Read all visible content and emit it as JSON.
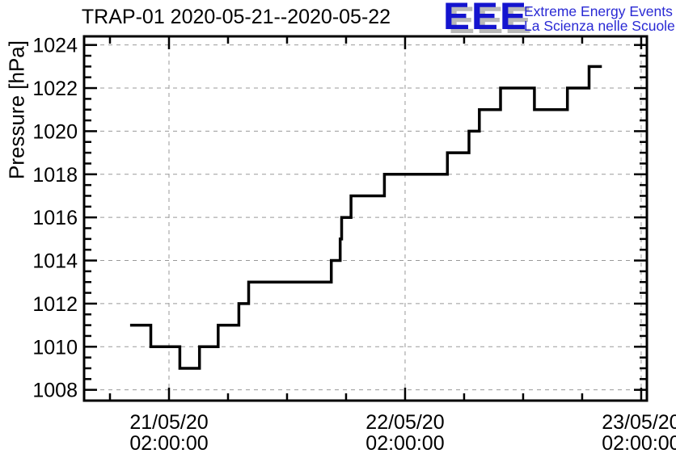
{
  "header": {
    "title": "TRAP-01 2020-05-21--2020-05-22"
  },
  "logo": {
    "acronym": "EEE",
    "line1": "Extreme Energy Events",
    "line2": "La Scienza nelle Scuole",
    "blue": "#1414cf",
    "text_blue": "#2929d4",
    "shadow_gray": "#b9b9b9"
  },
  "chart_data": {
    "type": "line",
    "step": true,
    "title": "TRAP-01 2020-05-21--2020-05-22",
    "xlabel": "",
    "ylabel": "Pressure [hPa]",
    "grid": true,
    "legend": "none",
    "line_color": "#000000",
    "grid_color": "#999999",
    "ylim": [
      1007.5,
      1024.4
    ],
    "y_ticks": [
      1008,
      1010,
      1012,
      1014,
      1016,
      1018,
      1020,
      1022,
      1024
    ],
    "y_minor_step": 0.5,
    "xlim_hours": [
      -8.63,
      48.58
    ],
    "x_minor_step_hours": 6,
    "x_ticks": [
      {
        "hour": 0,
        "date": "21/05/20",
        "time": "02:00:00"
      },
      {
        "hour": 24,
        "date": "22/05/20",
        "time": "02:00:00"
      },
      {
        "hour": 48,
        "date": "23/05/20",
        "time": "02:00:00"
      }
    ],
    "series": [
      {
        "name": "pressure_hPa",
        "points_hour_hpa": [
          [
            -3.95,
            1011
          ],
          [
            -1.85,
            1010
          ],
          [
            1.1,
            1009
          ],
          [
            3.1,
            1010
          ],
          [
            5.0,
            1011
          ],
          [
            7.1,
            1012
          ],
          [
            8.1,
            1013
          ],
          [
            16.5,
            1014
          ],
          [
            17.4,
            1015
          ],
          [
            17.55,
            1016
          ],
          [
            18.5,
            1017
          ],
          [
            21.9,
            1018
          ],
          [
            28.3,
            1019
          ],
          [
            30.5,
            1020
          ],
          [
            31.55,
            1021
          ],
          [
            33.7,
            1022
          ],
          [
            37.15,
            1021
          ],
          [
            40.5,
            1022
          ],
          [
            42.7,
            1023
          ]
        ],
        "end_hour": 44.0
      }
    ]
  }
}
